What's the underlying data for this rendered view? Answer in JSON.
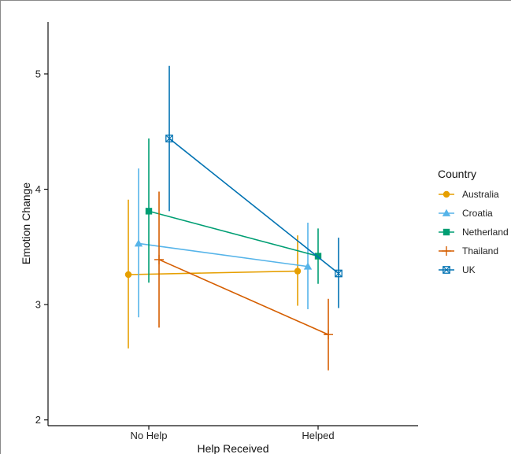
{
  "chart_data": {
    "type": "line",
    "title": "",
    "xlabel": "Help Received",
    "ylabel": "Emotion Change",
    "categories": [
      "No Help",
      "Helped"
    ],
    "ylim": [
      1.95,
      5.45
    ],
    "yticks": [
      2,
      3,
      4,
      5
    ],
    "grid": false,
    "legend": {
      "title": "Country",
      "placement": "right"
    },
    "series": [
      {
        "name": "Australia",
        "color": "#E69F00",
        "marker": "circle",
        "values": [
          3.26,
          3.29
        ],
        "lower": [
          2.62,
          2.99
        ],
        "upper": [
          3.91,
          3.6
        ]
      },
      {
        "name": "Croatia",
        "color": "#56B4E9",
        "marker": "triangle",
        "values": [
          3.53,
          3.33
        ],
        "lower": [
          2.89,
          2.96
        ],
        "upper": [
          4.18,
          3.71
        ]
      },
      {
        "name": "Netherland",
        "color": "#009E73",
        "marker": "square",
        "values": [
          3.81,
          3.42
        ],
        "lower": [
          3.19,
          3.18
        ],
        "upper": [
          4.44,
          3.66
        ]
      },
      {
        "name": "Thailand",
        "color": "#D55E00",
        "marker": "plus",
        "values": [
          3.39,
          2.74
        ],
        "lower": [
          2.8,
          2.43
        ],
        "upper": [
          3.98,
          3.05
        ]
      },
      {
        "name": "UK",
        "color": "#0072B2",
        "marker": "square-x",
        "values": [
          4.44,
          3.27
        ],
        "lower": [
          3.81,
          2.97
        ],
        "upper": [
          5.07,
          3.58
        ]
      }
    ]
  }
}
